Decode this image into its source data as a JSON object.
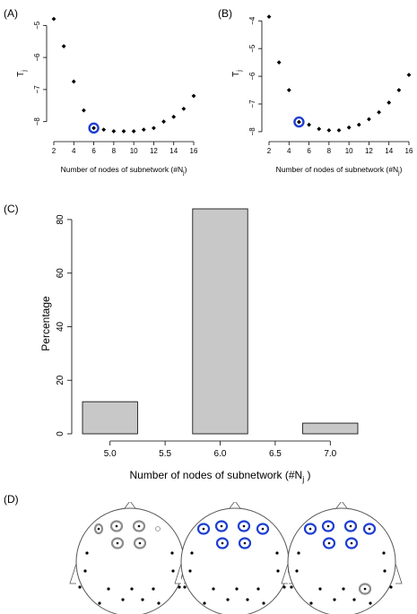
{
  "panels": {
    "a": "(A)",
    "b": "(B)",
    "c": "(C)",
    "d": "(D)"
  },
  "colors": {
    "highlight": "#1f3fd1",
    "grey_ring": "#8c8c8c",
    "bar_fill": "#c8c8c8"
  },
  "chart_data": [
    {
      "type": "scatter",
      "panel": "(A)",
      "xlabel": "Number of nodes of subnetwork (#N",
      "xlabel_sub": "j",
      "xlabel_close": ")",
      "ylabel": "T",
      "ylabel_sub": "j",
      "xlim": [
        2,
        16
      ],
      "ylim": [
        -8.4,
        -4.6
      ],
      "xticks": [
        2,
        4,
        6,
        8,
        10,
        12,
        14,
        16
      ],
      "yticks": [
        -8,
        -7,
        -6,
        -5
      ],
      "x": [
        2,
        3,
        4,
        5,
        6,
        7,
        8,
        9,
        10,
        11,
        12,
        13,
        14,
        15,
        16
      ],
      "y": [
        -4.8,
        -5.65,
        -6.75,
        -7.65,
        -8.2,
        -8.25,
        -8.3,
        -8.3,
        -8.3,
        -8.25,
        -8.2,
        -8.0,
        -7.85,
        -7.6,
        -7.2
      ],
      "highlight_x": 6
    },
    {
      "type": "scatter",
      "panel": "(B)",
      "xlabel": "Number of nodes of subnetwork (#N",
      "xlabel_sub": "j",
      "xlabel_close": ")",
      "ylabel": "T",
      "ylabel_sub": "j",
      "xlim": [
        2,
        16
      ],
      "ylim": [
        -8.1,
        -3.7
      ],
      "xticks": [
        2,
        4,
        6,
        8,
        10,
        12,
        14,
        16
      ],
      "yticks": [
        -8,
        -7,
        -6,
        -5,
        -4
      ],
      "x": [
        2,
        3,
        4,
        5,
        6,
        7,
        8,
        9,
        10,
        11,
        12,
        13,
        14,
        15,
        16
      ],
      "y": [
        -3.85,
        -5.5,
        -6.5,
        -7.65,
        -7.75,
        -7.9,
        -7.95,
        -7.95,
        -7.85,
        -7.75,
        -7.55,
        -7.3,
        -6.95,
        -6.5,
        -5.95
      ],
      "highlight_x": 5
    },
    {
      "type": "bar",
      "panel": "(C)",
      "categories": [
        5.0,
        6.0,
        7.0
      ],
      "values": [
        12,
        84,
        4
      ],
      "xticks": [
        "5.0",
        "5.5",
        "6.0",
        "6.5",
        "7.0"
      ],
      "yticks": [
        0,
        20,
        40,
        60,
        80
      ],
      "xlim": [
        4.75,
        7.25
      ],
      "ylim": [
        0,
        85
      ],
      "xlabel": "Number of nodes of subnetwork (#N",
      "xlabel_sub": "j",
      "xlabel_close": " )",
      "ylabel": "Percentage"
    }
  ],
  "head_maps": {
    "panel": "(D)",
    "heads": [
      {
        "rings": [
          {
            "pos": "Fp1",
            "color": "grey",
            "size": "small"
          },
          {
            "pos": "AF3",
            "color": "grey",
            "size": "large"
          },
          {
            "pos": "AF4",
            "color": "grey",
            "size": "large"
          },
          {
            "pos": "Fp2",
            "color": "grey",
            "size": "tiny"
          },
          {
            "pos": "F3",
            "color": "grey",
            "size": "large"
          },
          {
            "pos": "F4",
            "color": "grey",
            "size": "large"
          }
        ]
      },
      {
        "rings": [
          {
            "pos": "Fp1",
            "color": "blue",
            "size": "large"
          },
          {
            "pos": "AF3",
            "color": "blue",
            "size": "large"
          },
          {
            "pos": "AF4",
            "color": "blue",
            "size": "large"
          },
          {
            "pos": "Fp2",
            "color": "blue",
            "size": "large"
          },
          {
            "pos": "F3",
            "color": "blue",
            "size": "large"
          },
          {
            "pos": "F4",
            "color": "blue",
            "size": "large"
          }
        ]
      },
      {
        "rings": [
          {
            "pos": "Fp1",
            "color": "blue",
            "size": "large"
          },
          {
            "pos": "AF3",
            "color": "blue",
            "size": "large"
          },
          {
            "pos": "AF4",
            "color": "blue",
            "size": "large"
          },
          {
            "pos": "Fp2",
            "color": "blue",
            "size": "large"
          },
          {
            "pos": "F3",
            "color": "blue",
            "size": "large"
          },
          {
            "pos": "F4",
            "color": "blue",
            "size": "large"
          },
          {
            "pos": "P4",
            "color": "grey",
            "size": "large"
          }
        ]
      }
    ]
  }
}
